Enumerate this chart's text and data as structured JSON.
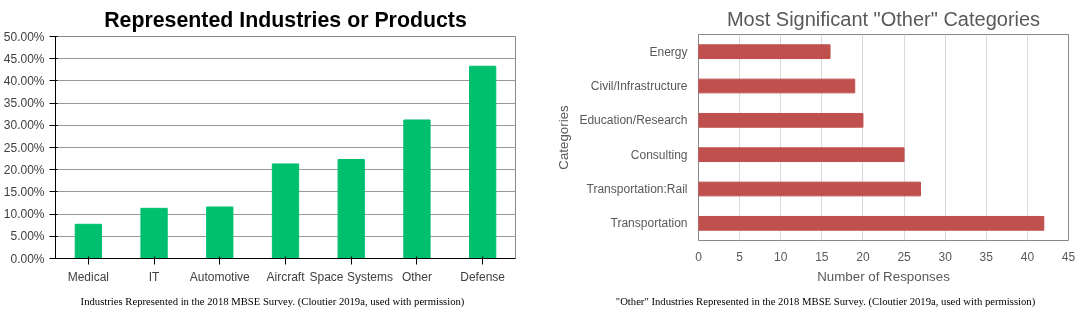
{
  "chart_data": [
    {
      "type": "bar",
      "title": "Represented Industries or Products",
      "categories": [
        "Medical",
        "IT",
        "Automotive",
        "Aircraft",
        "Space Systems",
        "Other",
        "Defense"
      ],
      "values": [
        7.7,
        11.3,
        11.6,
        21.3,
        22.3,
        31.2,
        43.3
      ],
      "color": "#00bf6f",
      "ylim": [
        0,
        50
      ],
      "yticks": [
        {
          "value": 0,
          "label": "0.00%"
        },
        {
          "value": 5,
          "label": "5.00%"
        },
        {
          "value": 10,
          "label": "10.00%"
        },
        {
          "value": 15,
          "label": "15.00%"
        },
        {
          "value": 20,
          "label": "20.00%"
        },
        {
          "value": 25,
          "label": "25.00%"
        },
        {
          "value": 30,
          "label": "30.00%"
        },
        {
          "value": 35,
          "label": "35.00%"
        },
        {
          "value": 40,
          "label": "40.00%"
        },
        {
          "value": 45,
          "label": "45.00%"
        },
        {
          "value": 50,
          "label": "50.00%"
        }
      ],
      "grid": "y",
      "annotations": [
        "Industries Represented in the 2018 MBSE Survey. (Cloutier 2019a, used with permission)"
      ]
    },
    {
      "type": "bar",
      "orientation": "horizontal",
      "title": "Most Significant \"Other\" Categories",
      "categories": [
        "Energy",
        "Civil/Infrastructure",
        "Education/Research",
        "Consulting",
        "Transportation:Rail",
        "Transportation"
      ],
      "values": [
        16,
        19,
        20,
        25,
        27,
        42
      ],
      "color": "#c0504d",
      "xlim": [
        0,
        45
      ],
      "xticks": [
        0,
        5,
        10,
        15,
        20,
        25,
        30,
        35,
        40,
        45
      ],
      "xlabel": "Number of Responses",
      "ylabel": "Categories",
      "grid": "x",
      "annotations": [
        "\"Other\" Industries Represented in the 2018 MBSE Survey. (Cloutier 2019a, used with permission)"
      ]
    }
  ]
}
